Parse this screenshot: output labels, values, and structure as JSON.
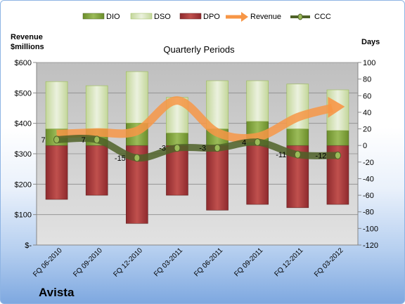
{
  "chart_data": {
    "type": "bar",
    "title": "Quarterly Periods",
    "company": "Avista",
    "left_axis_title": [
      "Revenue",
      "$millions"
    ],
    "right_axis_title": "Days",
    "categories": [
      "FQ 06-2010",
      "FQ 09-2010",
      "FQ 12-2010",
      "FQ 03-2011",
      "FQ 06-2011",
      "FQ 09-2011",
      "FQ 12-2011",
      "FQ 03-2012"
    ],
    "left_axis": {
      "ticks": [
        "$-",
        "$100",
        "$200",
        "$300",
        "$400",
        "$500",
        "$600"
      ],
      "min": 0,
      "max": 600,
      "step": 100
    },
    "right_axis": {
      "ticks": [
        "-120",
        "-100",
        "-80",
        "-60",
        "-40",
        "-20",
        "0",
        "20",
        "40",
        "60",
        "80",
        "100"
      ],
      "min": -120,
      "max": 100,
      "step": 20
    },
    "legend": {
      "position": "top",
      "entries": [
        "DIO",
        "DSO",
        "DPO",
        "Revenue",
        "CCC"
      ]
    },
    "series": [
      {
        "name": "DIO",
        "axis": "days",
        "values": [
          20,
          20,
          27,
          15,
          20,
          29,
          20,
          18
        ],
        "color": "#77933c"
      },
      {
        "name": "DSO",
        "axis": "days",
        "values": [
          57,
          52,
          62,
          43,
          58,
          49,
          54,
          49
        ],
        "color": "#d7e4bd"
      },
      {
        "name": "DPO",
        "axis": "days",
        "values": [
          -65,
          -60,
          -94,
          -60,
          -78,
          -71,
          -75,
          -71
        ],
        "color": "#a0363a"
      },
      {
        "name": "Revenue",
        "axis": "revenue",
        "values": [
          365,
          370,
          375,
          475,
          370,
          355,
          420,
          455
        ],
        "color": "#f79646"
      },
      {
        "name": "CCC",
        "axis": "days",
        "values": [
          7,
          7,
          -15,
          -3,
          -3,
          4,
          -11,
          -12
        ],
        "color": "#4f6228"
      }
    ],
    "ccc_labels": [
      "7",
      "7",
      "-15",
      "-3",
      "-3",
      "4",
      "-11",
      "-12"
    ],
    "grid": true
  }
}
